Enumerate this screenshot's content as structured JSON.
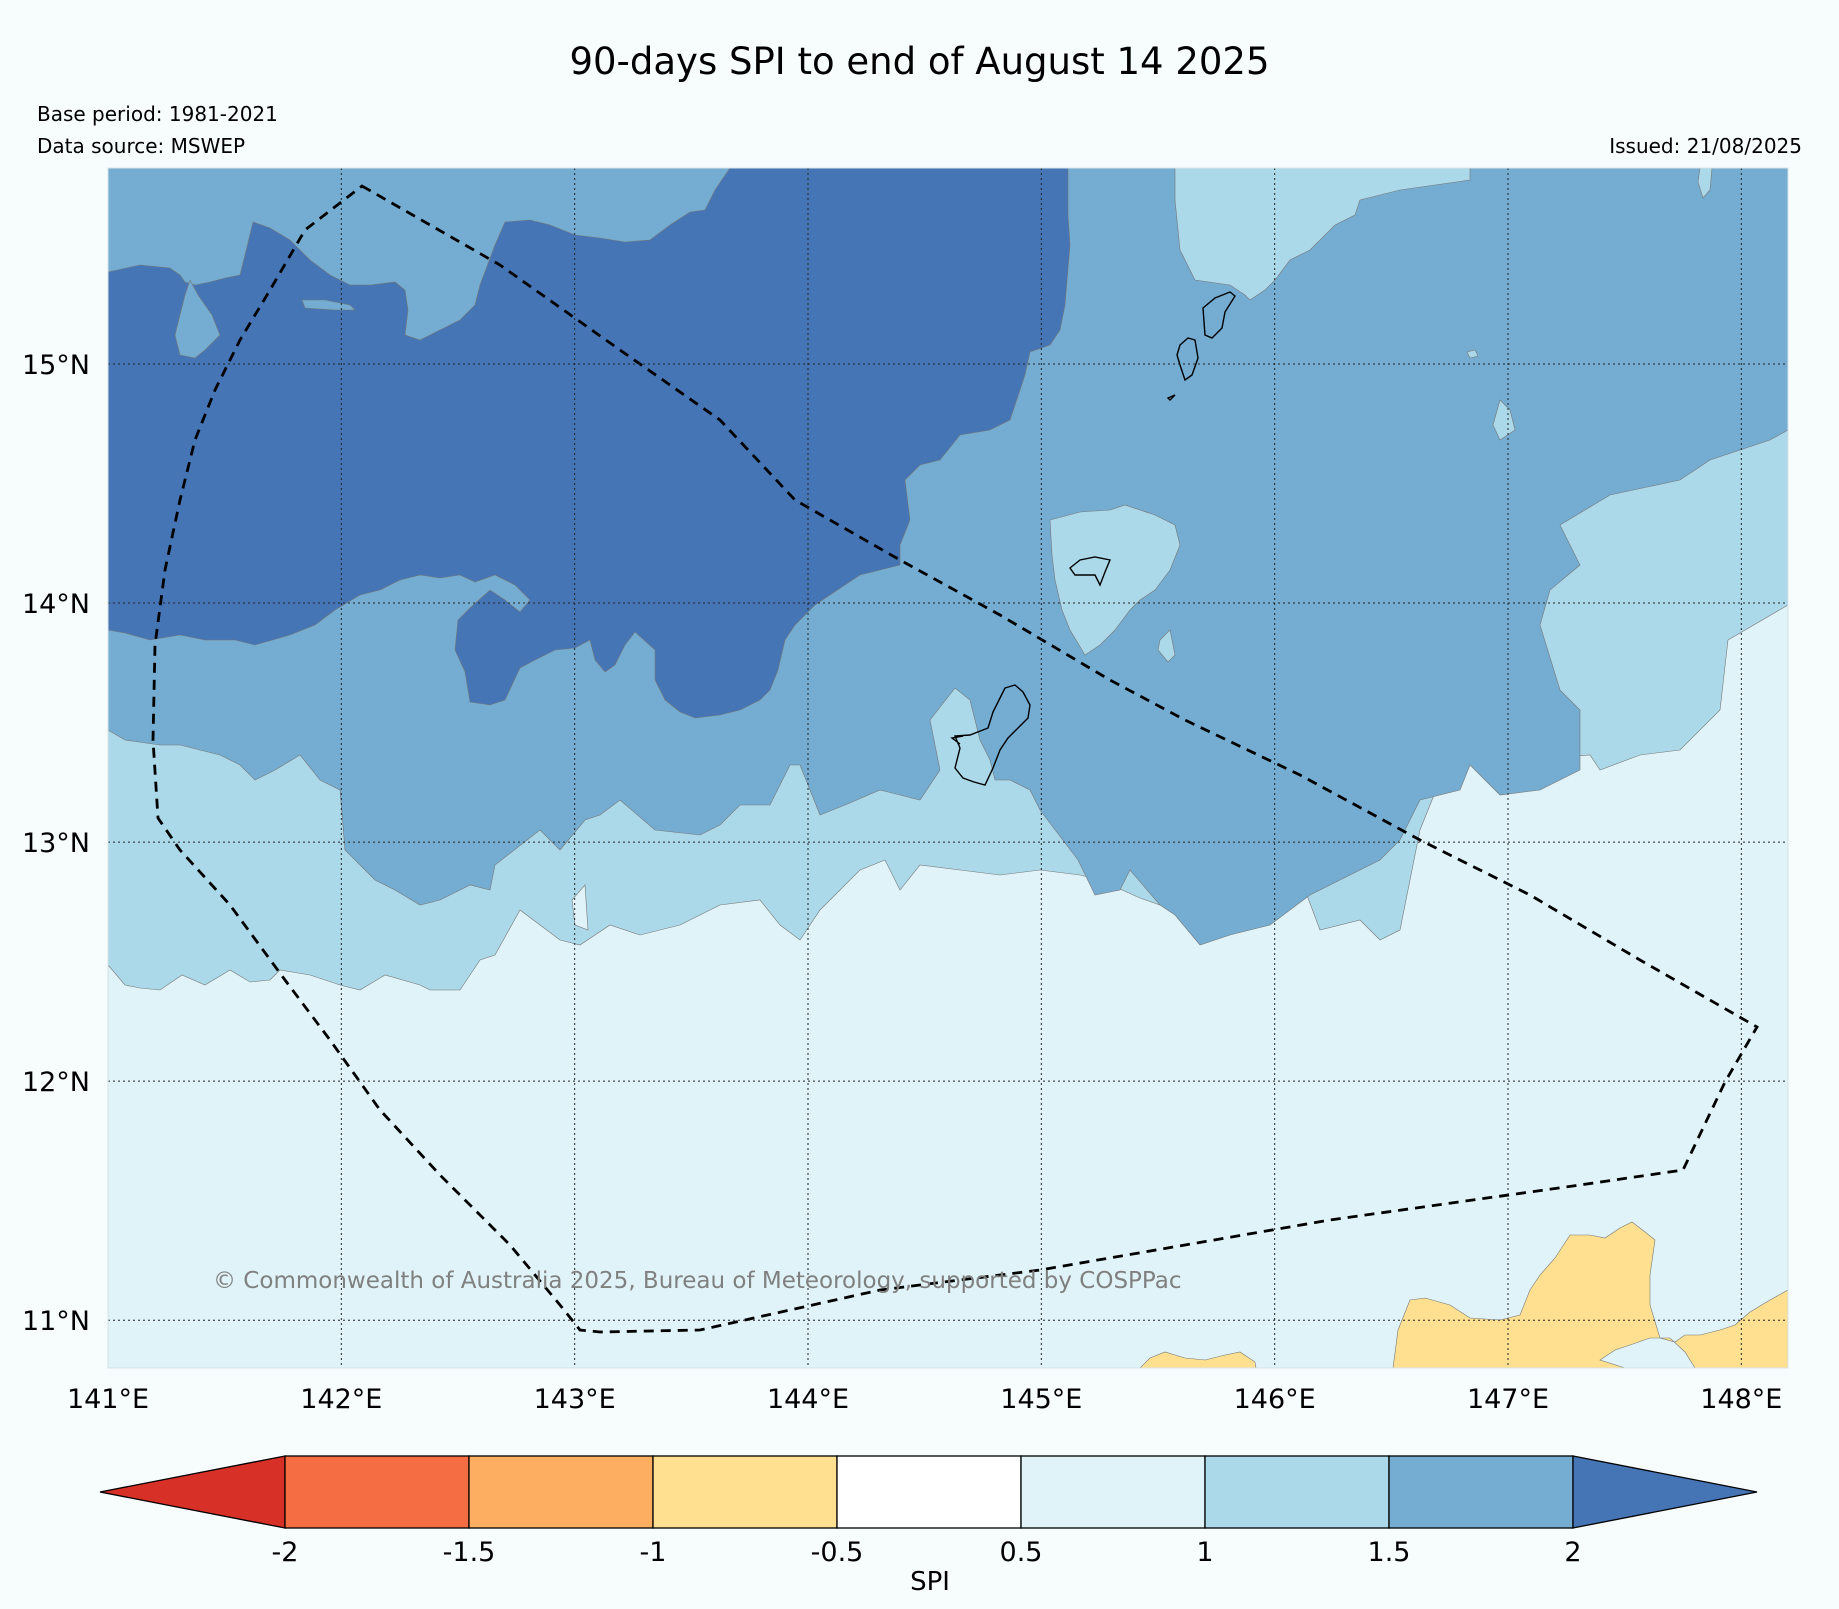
{
  "title": "90-days SPI to end of August 14 2025",
  "base_period": "Base period: 1981-2021",
  "data_source": "Data source: MSWEP",
  "issued": "Issued: 21/08/2025",
  "copyright": "© Commonwealth of Australia 2025, Bureau of Meteorology, supported by COSPPac",
  "map": {
    "lon_range": [
      141,
      148.2
    ],
    "lat_range": [
      10.8,
      15.82
    ],
    "lon_ticks": [
      {
        "value": 141,
        "label": "141°E"
      },
      {
        "value": 142,
        "label": "142°E"
      },
      {
        "value": 143,
        "label": "143°E"
      },
      {
        "value": 144,
        "label": "144°E"
      },
      {
        "value": 145,
        "label": "145°E"
      },
      {
        "value": 146,
        "label": "146°E"
      },
      {
        "value": 147,
        "label": "147°E"
      },
      {
        "value": 148,
        "label": "148°E"
      }
    ],
    "lat_ticks": [
      {
        "value": 11,
        "label": "11°N"
      },
      {
        "value": 12,
        "label": "12°N"
      },
      {
        "value": 13,
        "label": "13°N"
      },
      {
        "value": 14,
        "label": "14°N"
      },
      {
        "value": 15,
        "label": "15°N"
      }
    ],
    "grid": "dotted"
  },
  "colorbar": {
    "label": "SPI",
    "ticks": [
      "-2",
      "-1.5",
      "-1",
      "-0.5",
      "0.5",
      "1",
      "1.5",
      "2"
    ],
    "colors": [
      "#d73027",
      "#f46d43",
      "#fdae61",
      "#fee090",
      "#ffffff",
      "#e0f3f8",
      "#abd9e9",
      "#74add1",
      "#4575b4"
    ],
    "extend": "both"
  },
  "colors": {
    "background": "#f7fcfd",
    "spi_above_2": "#4575b4",
    "spi_1_5_to_2": "#74add1",
    "spi_1_to_1_5": "#abd9e9",
    "spi_0_5_to_1": "#e0f3f8",
    "spi_neutral": "#ffffff",
    "spi_minus_1_to_minus_0_5": "#fee090"
  }
}
